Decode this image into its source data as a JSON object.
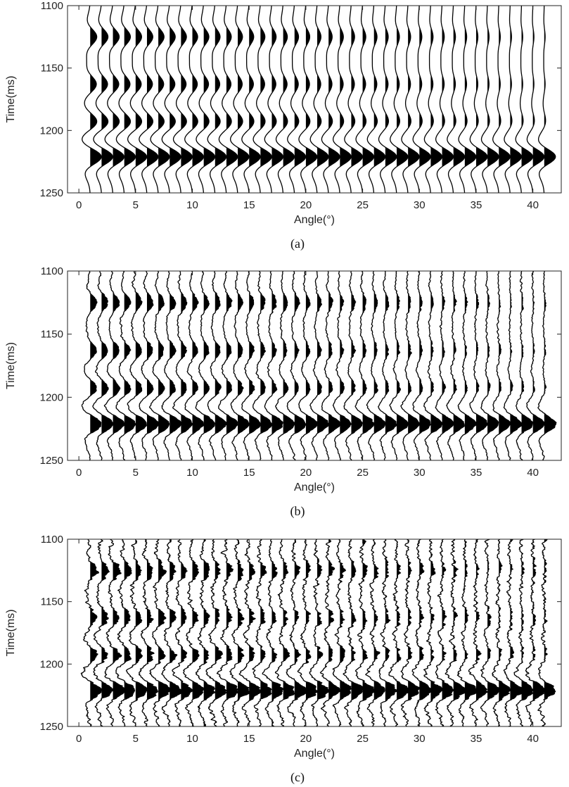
{
  "chart_data": [
    {
      "type": "seismic_wiggle",
      "panel_label": "(a)",
      "noise": 0,
      "xlabel": "Angle(°)",
      "ylabel": "Time(ms)",
      "xlim": [
        -1,
        42.5
      ],
      "ylim": [
        1250,
        1100
      ],
      "xticks": [
        0,
        5,
        10,
        15,
        20,
        25,
        30,
        35,
        40
      ],
      "yticks": [
        1100,
        1150,
        1200,
        1250
      ],
      "trace_angles": [
        1,
        2,
        3,
        4,
        5,
        6,
        7,
        8,
        9,
        10,
        11,
        12,
        13,
        14,
        15,
        16,
        17,
        18,
        19,
        20,
        21,
        22,
        23,
        24,
        25,
        26,
        27,
        28,
        29,
        30,
        31,
        32,
        33,
        34,
        35,
        36,
        37,
        38,
        39,
        40,
        41
      ],
      "events": [
        {
          "time_ms": 1125,
          "amp_0": 0.95,
          "amp_40": 0.15
        },
        {
          "time_ms": 1163,
          "amp_0": 0.9,
          "amp_40": 0.15
        },
        {
          "time_ms": 1193,
          "amp_0": 1.0,
          "amp_40": 0.25
        },
        {
          "time_ms": 1221,
          "amp_0": 1.6,
          "amp_40": 1.6
        }
      ],
      "grid": false
    },
    {
      "type": "seismic_wiggle",
      "panel_label": "(b)",
      "noise": 0.12,
      "xlabel": "Angle(°)",
      "ylabel": "Time(ms)",
      "xlim": [
        -1,
        42.5
      ],
      "ylim": [
        1250,
        1100
      ],
      "xticks": [
        0,
        5,
        10,
        15,
        20,
        25,
        30,
        35,
        40
      ],
      "yticks": [
        1100,
        1150,
        1200,
        1250
      ],
      "trace_angles": [
        1,
        2,
        3,
        4,
        5,
        6,
        7,
        8,
        9,
        10,
        11,
        12,
        13,
        14,
        15,
        16,
        17,
        18,
        19,
        20,
        21,
        22,
        23,
        24,
        25,
        26,
        27,
        28,
        29,
        30,
        31,
        32,
        33,
        34,
        35,
        36,
        37,
        38,
        39,
        40,
        41
      ],
      "events": [
        {
          "time_ms": 1125,
          "amp_0": 0.95,
          "amp_40": 0.15
        },
        {
          "time_ms": 1163,
          "amp_0": 0.9,
          "amp_40": 0.15
        },
        {
          "time_ms": 1193,
          "amp_0": 1.0,
          "amp_40": 0.25
        },
        {
          "time_ms": 1221,
          "amp_0": 1.6,
          "amp_40": 1.6
        }
      ],
      "grid": false
    },
    {
      "type": "seismic_wiggle",
      "panel_label": "(c)",
      "noise": 0.28,
      "xlabel": "Angle(°)",
      "ylabel": "Time(ms)",
      "xlim": [
        -1,
        42.5
      ],
      "ylim": [
        1250,
        1100
      ],
      "xticks": [
        0,
        5,
        10,
        15,
        20,
        25,
        30,
        35,
        40
      ],
      "yticks": [
        1100,
        1150,
        1200,
        1250
      ],
      "trace_angles": [
        1,
        2,
        3,
        4,
        5,
        6,
        7,
        8,
        9,
        10,
        11,
        12,
        13,
        14,
        15,
        16,
        17,
        18,
        19,
        20,
        21,
        22,
        23,
        24,
        25,
        26,
        27,
        28,
        29,
        30,
        31,
        32,
        33,
        34,
        35,
        36,
        37,
        38,
        39,
        40,
        41
      ],
      "events": [
        {
          "time_ms": 1125,
          "amp_0": 0.95,
          "amp_40": 0.15
        },
        {
          "time_ms": 1163,
          "amp_0": 0.9,
          "amp_40": 0.15
        },
        {
          "time_ms": 1193,
          "amp_0": 1.0,
          "amp_40": 0.25
        },
        {
          "time_ms": 1221,
          "amp_0": 1.6,
          "amp_40": 1.6
        }
      ],
      "grid": false
    }
  ],
  "colors": {
    "trace": "#000000",
    "axis": "#222222",
    "background": "#ffffff"
  }
}
